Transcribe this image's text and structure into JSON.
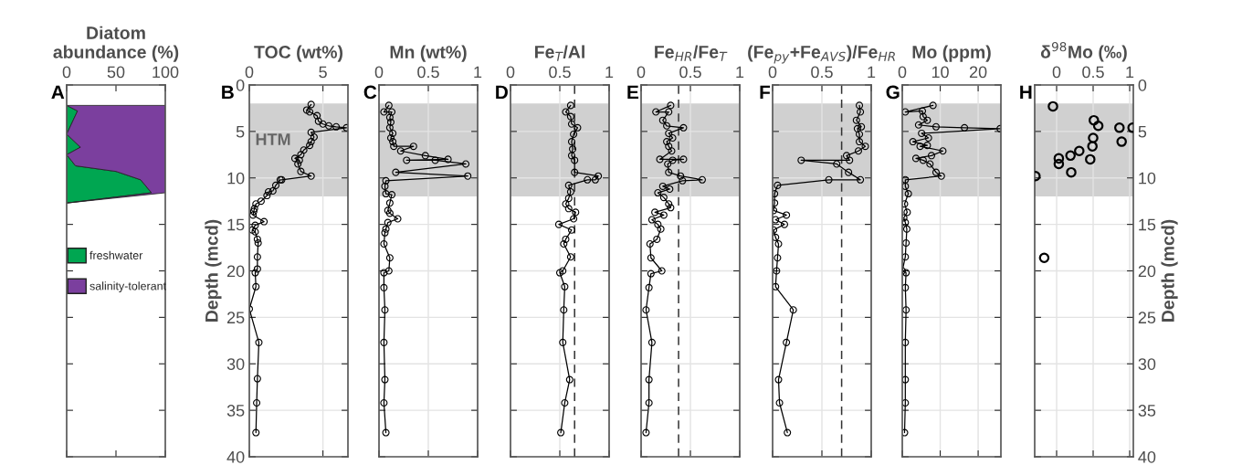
{
  "chart_data": [
    {
      "type": "area",
      "stacked": true,
      "orientation": "horizontal",
      "xlabel": "Diatom\nabundance (%)",
      "xlim": [
        0,
        100
      ],
      "xticks": [
        0,
        50,
        100
      ],
      "ylim": [
        40,
        0
      ],
      "yticks": [
        0,
        5,
        10,
        15,
        20,
        25,
        30,
        35,
        40
      ],
      "tick_labels": "x",
      "legend": "left",
      "annotations": [
        "A"
      ],
      "series": [
        {
          "name": "freshwater",
          "color": "#00a651",
          "x": [
            2.2,
            2.8,
            5.3,
            6.7,
            7.5,
            8.7,
            9.3,
            10.2,
            11.6,
            12.7
          ],
          "values": [
            0,
            11,
            0,
            14,
            0,
            9,
            50,
            75,
            86,
            0
          ]
        },
        {
          "name": "salinity-tolerant",
          "color": "#7b3f9e",
          "x": [
            2.2,
            2.8,
            5.3,
            6.7,
            7.5,
            8.7,
            9.3,
            10.2,
            11.6,
            12.7
          ],
          "values": [
            100,
            89,
            100,
            86,
            100,
            91,
            50,
            25,
            14,
            0
          ]
        }
      ]
    },
    {
      "type": "line",
      "orientation": "horizontal",
      "xlabel": "TOC (wt%)",
      "ylabel": "Depth (mcd)",
      "xlim": [
        0,
        6.7
      ],
      "xticks": [
        0,
        5
      ],
      "ylim": [
        40,
        0
      ],
      "yticks": [
        0,
        5,
        10,
        15,
        20,
        25,
        30,
        35,
        40
      ],
      "grid": true,
      "marker": "circle",
      "line_style": "solid",
      "annotations": [
        "B"
      ],
      "bands": [
        {
          "axis": "y",
          "from": 2,
          "to": 12,
          "label": "HTM",
          "color": "#c8c8c8"
        }
      ],
      "series": [
        {
          "color": "#000000",
          "x": [
            2.1,
            2.7,
            2.9,
            3.3,
            3.9,
            4.2,
            4.4,
            4.5,
            4.6,
            5.1,
            5.6,
            6.1,
            6.5,
            7.0,
            7.5,
            7.9,
            8.1,
            8.5,
            9.3,
            9.8,
            10.2,
            10.2,
            10.8,
            11.4,
            11.5,
            11.9,
            12.5,
            12.8,
            13.3,
            13.6,
            14.0,
            14.7,
            15.1,
            15.6,
            15.8,
            16.6,
            17.0,
            18.5,
            19.8,
            20.2,
            21.7,
            24.1,
            27.7,
            31.6,
            34.2,
            37.4
          ],
          "values": [
            4.2,
            3.9,
            4.1,
            4.6,
            4.7,
            5.0,
            5.4,
            5.9,
            6.6,
            4.2,
            4.4,
            4.2,
            4.1,
            3.7,
            3.5,
            3.1,
            3.4,
            3.3,
            3.5,
            4.2,
            2.2,
            2.1,
            1.8,
            1.6,
            1.3,
            1.2,
            0.8,
            0.45,
            0.35,
            0.3,
            0.25,
            1.0,
            0.4,
            0.2,
            0.4,
            0.55,
            0.6,
            0.55,
            0.55,
            0.4,
            0.45,
            0,
            0.65,
            0.55,
            0.5,
            0.45
          ]
        }
      ]
    },
    {
      "type": "line",
      "orientation": "horizontal",
      "xlabel": "Mn (wt%)",
      "xlim": [
        0,
        1
      ],
      "xticks": [
        0,
        0.5,
        1
      ],
      "ylim": [
        40,
        0
      ],
      "yticks": [
        0,
        5,
        10,
        15,
        20,
        25,
        30,
        35,
        40
      ],
      "tick_labels": "x",
      "grid": true,
      "marker": "circle",
      "line_style": "solid",
      "annotations": [
        "C"
      ],
      "bands": [
        {
          "axis": "y",
          "from": 2,
          "to": 12,
          "color": "#c8c8c8"
        }
      ],
      "series": [
        {
          "color": "#000000",
          "x": [
            2.2,
            2.9,
            2.9,
            3.5,
            4.0,
            4.6,
            5.2,
            5.7,
            6.1,
            6.6,
            6.6,
            7.1,
            7.6,
            8.0,
            8.1,
            8.1,
            8.5,
            9.4,
            9.8,
            10.3,
            10.9,
            11.7,
            11.8,
            12.7,
            13.5,
            13.8,
            14.4,
            14.8,
            15.5,
            15.9,
            17.1,
            18.6,
            20.0,
            20.2,
            21.8,
            24.2,
            27.7,
            31.7,
            34.2,
            37.4
          ],
          "values": [
            0.1,
            0.05,
            0.13,
            0.11,
            0.12,
            0.11,
            0.14,
            0.12,
            0.14,
            0.15,
            0.35,
            0.22,
            0.47,
            0.7,
            0.28,
            0.57,
            0.88,
            0.17,
            0.9,
            0.07,
            0.06,
            0.07,
            0.13,
            0.11,
            0.09,
            0.11,
            0.19,
            0.09,
            0.07,
            0.06,
            0.05,
            0.11,
            0.1,
            0.05,
            0.05,
            0.06,
            0.05,
            0.06,
            0.05,
            0.07
          ]
        }
      ]
    },
    {
      "type": "line",
      "orientation": "horizontal",
      "xlabel": "Fe$_{T}$/Al",
      "xlim": [
        0,
        1
      ],
      "xticks": [
        0,
        0.5,
        1
      ],
      "ylim": [
        40,
        0
      ],
      "yticks": [
        0,
        5,
        10,
        15,
        20,
        25,
        30,
        35,
        40
      ],
      "tick_labels": "x",
      "grid": true,
      "marker": "circle",
      "line_style": "solid",
      "annotations": [
        "D"
      ],
      "bands": [
        {
          "axis": "y",
          "from": 2,
          "to": 12,
          "color": "#c8c8c8"
        }
      ],
      "ref_lines": [
        {
          "axis": "x",
          "value": 0.65,
          "line_style": "dashed",
          "color": "#333333"
        }
      ],
      "series": [
        {
          "color": "#000000",
          "x": [
            2.2,
            2.9,
            3.4,
            4.2,
            4.6,
            5.3,
            6.1,
            6.9,
            7.6,
            8.1,
            9.4,
            9.8,
            10.2,
            10.2,
            10.8,
            11.5,
            12.2,
            12.8,
            13.3,
            13.7,
            14.4,
            15.0,
            15.6,
            16.6,
            17.1,
            18.5,
            20.0,
            20.2,
            21.7,
            24.2,
            27.7,
            31.7,
            34.2,
            37.4
          ],
          "values": [
            0.61,
            0.56,
            0.61,
            0.62,
            0.68,
            0.64,
            0.62,
            0.63,
            0.62,
            0.65,
            0.65,
            0.89,
            0.86,
            0.78,
            0.59,
            0.61,
            0.59,
            0.56,
            0.59,
            0.66,
            0.64,
            0.49,
            0.62,
            0.56,
            0.54,
            0.61,
            0.53,
            0.5,
            0.55,
            0.54,
            0.53,
            0.6,
            0.55,
            0.51
          ]
        }
      ]
    },
    {
      "type": "line",
      "orientation": "horizontal",
      "xlabel": "Fe$_{HR}$/Fe$_{T}$",
      "xlim": [
        0,
        1
      ],
      "xticks": [
        0,
        0.5,
        1
      ],
      "ylim": [
        40,
        0
      ],
      "yticks": [
        0,
        5,
        10,
        15,
        20,
        25,
        30,
        35,
        40
      ],
      "tick_labels": "x",
      "grid": true,
      "marker": "circle",
      "line_style": "solid",
      "annotations": [
        "E"
      ],
      "bands": [
        {
          "axis": "y",
          "from": 2,
          "to": 12,
          "color": "#c8c8c8"
        }
      ],
      "ref_lines": [
        {
          "axis": "x",
          "value": 0.38,
          "line_style": "dashed",
          "color": "#333333"
        }
      ],
      "series": [
        {
          "color": "#000000",
          "x": [
            2.2,
            2.9,
            2.9,
            3.8,
            4.4,
            4.6,
            5.2,
            5.7,
            6.1,
            6.6,
            7.1,
            8.0,
            8.0,
            8.1,
            8.5,
            9.4,
            9.8,
            10.2,
            10.3,
            10.9,
            11.2,
            11.6,
            12.1,
            12.8,
            13.2,
            13.7,
            14.0,
            14.5,
            15.0,
            15.5,
            16.6,
            17.1,
            18.6,
            20.0,
            20.3,
            21.8,
            24.2,
            27.7,
            31.7,
            34.2,
            37.4
          ],
          "values": [
            0.3,
            0.15,
            0.28,
            0.22,
            0.26,
            0.43,
            0.28,
            0.32,
            0.26,
            0.28,
            0.31,
            0.19,
            0.43,
            0.32,
            0.27,
            0.28,
            0.4,
            0.62,
            0.42,
            0.22,
            0.29,
            0.17,
            0.23,
            0.28,
            0.3,
            0.14,
            0.23,
            0.11,
            0.17,
            0.2,
            0.16,
            0.09,
            0.1,
            0.21,
            0.1,
            0.08,
            0.05,
            0.11,
            0.08,
            0.08,
            0.05
          ]
        }
      ]
    },
    {
      "type": "line",
      "orientation": "horizontal",
      "xlabel": "(Fe$_{py}$+Fe$_{AVS}$)/Fe$_{HR}$",
      "xlim": [
        0,
        1
      ],
      "xticks": [
        0,
        0.5,
        1
      ],
      "ylim": [
        40,
        0
      ],
      "yticks": [
        0,
        5,
        10,
        15,
        20,
        25,
        30,
        35,
        40
      ],
      "tick_labels": "x",
      "grid": true,
      "marker": "circle",
      "line_style": "solid",
      "annotations": [
        "F"
      ],
      "bands": [
        {
          "axis": "y",
          "from": 2,
          "to": 12,
          "color": "#c8c8c8"
        }
      ],
      "ref_lines": [
        {
          "axis": "x",
          "value": 0.7,
          "line_style": "dashed",
          "color": "#333333"
        }
      ],
      "series": [
        {
          "color": "#000000",
          "x": [
            2.2,
            2.9,
            3.8,
            4.5,
            4.7,
            5.3,
            6.1,
            6.6,
            7.1,
            7.6,
            8.1,
            8.1,
            8.5,
            9.4,
            10.2,
            10.2,
            10.8,
            11.7,
            12.7,
            13.5,
            14.0,
            14.5,
            15.0,
            15.6,
            16.4,
            17.1,
            18.6,
            20.0,
            21.7,
            24.2,
            27.7,
            31.7,
            34.2,
            37.4
          ],
          "values": [
            0.88,
            0.89,
            0.85,
            0.9,
            0.86,
            0.88,
            0.88,
            0.94,
            0.87,
            0.75,
            0.78,
            0.29,
            0.65,
            0.77,
            0.89,
            0.57,
            0.05,
            0.02,
            0.02,
            0.01,
            0.14,
            0.03,
            0.12,
            0.01,
            0.03,
            0.06,
            0.05,
            0.04,
            0.03,
            0.21,
            0.14,
            0.06,
            0.07,
            0.15
          ]
        }
      ]
    },
    {
      "type": "line",
      "orientation": "horizontal",
      "xlabel": "Mo (ppm)",
      "xlim": [
        0,
        26
      ],
      "xticks": [
        0,
        10,
        20
      ],
      "ylim": [
        40,
        0
      ],
      "yticks": [
        0,
        5,
        10,
        15,
        20,
        25,
        30,
        35,
        40
      ],
      "tick_labels": "x",
      "grid": true,
      "marker": "circle",
      "line_style": "solid",
      "annotations": [
        "G"
      ],
      "bands": [
        {
          "axis": "y",
          "from": 2,
          "to": 12,
          "color": "#c8c8c8"
        }
      ],
      "series": [
        {
          "color": "#000000",
          "x": [
            2.2,
            2.9,
            2.8,
            3.4,
            3.8,
            4.3,
            4.5,
            4.6,
            4.7,
            5.2,
            5.7,
            6.1,
            6.5,
            6.6,
            7.1,
            7.6,
            7.9,
            8.1,
            8.5,
            9.4,
            9.8,
            10.2,
            10.9,
            11.7,
            12.8,
            13.7,
            14.3,
            14.8,
            15.5,
            17.0,
            18.5,
            20.0,
            20.2,
            21.8,
            24.2,
            27.7,
            31.7,
            34.2,
            37.4
          ],
          "values": [
            8.1,
            0.8,
            5.3,
            5.5,
            6.6,
            4.3,
            8.9,
            16.4,
            25.8,
            5.1,
            6.9,
            2.8,
            6.6,
            4.7,
            10.7,
            7.7,
            3.6,
            5.5,
            7.3,
            8.9,
            10.3,
            0.8,
            0.8,
            1.6,
            0.6,
            1.3,
            0.4,
            0.8,
            1.2,
            1.0,
            0.8,
            0,
            1.0,
            0.8,
            1.0,
            0.8,
            0.8,
            0.8,
            0.6
          ]
        }
      ]
    },
    {
      "type": "scatter",
      "orientation": "horizontal",
      "xlabel": "δ$^{98}$Mo (‰)",
      "ylabel": "Depth (mcd)",
      "xlim": [
        -0.3,
        1.05
      ],
      "xticks": [
        0,
        0.5,
        1
      ],
      "ylim": [
        40,
        0
      ],
      "yticks": [
        0,
        5,
        10,
        15,
        20,
        25,
        30,
        35,
        40
      ],
      "grid": true,
      "marker": "circle",
      "annotations": [
        "H"
      ],
      "bands": [
        {
          "axis": "y",
          "from": 2,
          "to": 12,
          "color": "#c8c8c8"
        }
      ],
      "series": [
        {
          "color": "#000000",
          "x": [
            2.3,
            3.8,
            4.4,
            4.6,
            4.6,
            5.7,
            6.1,
            6.6,
            7.1,
            7.6,
            7.9,
            8.0,
            8.5,
            9.4,
            9.8,
            18.6
          ],
          "values": [
            -0.05,
            0.51,
            0.57,
            0.86,
            1.04,
            0.5,
            0.89,
            0.49,
            0.31,
            0.19,
            0.03,
            0.46,
            0.03,
            0.2,
            -0.29,
            -0.17
          ]
        }
      ]
    }
  ]
}
